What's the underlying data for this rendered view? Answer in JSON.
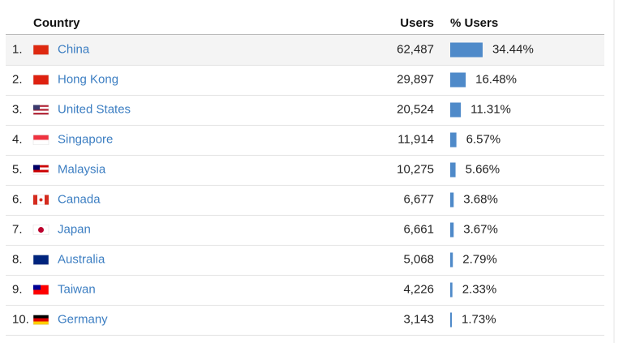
{
  "table": {
    "header": {
      "country": "Country",
      "users": "Users",
      "pct": "% Users"
    },
    "rows": [
      {
        "rank": "1.",
        "country": "China",
        "users": "62,487",
        "pct": 34.44,
        "pct_label": "34.44%"
      },
      {
        "rank": "2.",
        "country": "Hong Kong",
        "users": "29,897",
        "pct": 16.48,
        "pct_label": "16.48%"
      },
      {
        "rank": "3.",
        "country": "United States",
        "users": "20,524",
        "pct": 11.31,
        "pct_label": "11.31%"
      },
      {
        "rank": "4.",
        "country": "Singapore",
        "users": "11,914",
        "pct": 6.57,
        "pct_label": "6.57%"
      },
      {
        "rank": "5.",
        "country": "Malaysia",
        "users": "10,275",
        "pct": 5.66,
        "pct_label": "5.66%"
      },
      {
        "rank": "6.",
        "country": "Canada",
        "users": "6,677",
        "pct": 3.68,
        "pct_label": "3.68%"
      },
      {
        "rank": "7.",
        "country": "Japan",
        "users": "6,661",
        "pct": 3.67,
        "pct_label": "3.67%"
      },
      {
        "rank": "8.",
        "country": "Australia",
        "users": "5,068",
        "pct": 2.79,
        "pct_label": "2.79%"
      },
      {
        "rank": "9.",
        "country": "Taiwan",
        "users": "4,226",
        "pct": 2.33,
        "pct_label": "2.33%"
      },
      {
        "rank": "10.",
        "country": "Germany",
        "users": "3,143",
        "pct": 1.73,
        "pct_label": "1.73%"
      }
    ]
  }
}
